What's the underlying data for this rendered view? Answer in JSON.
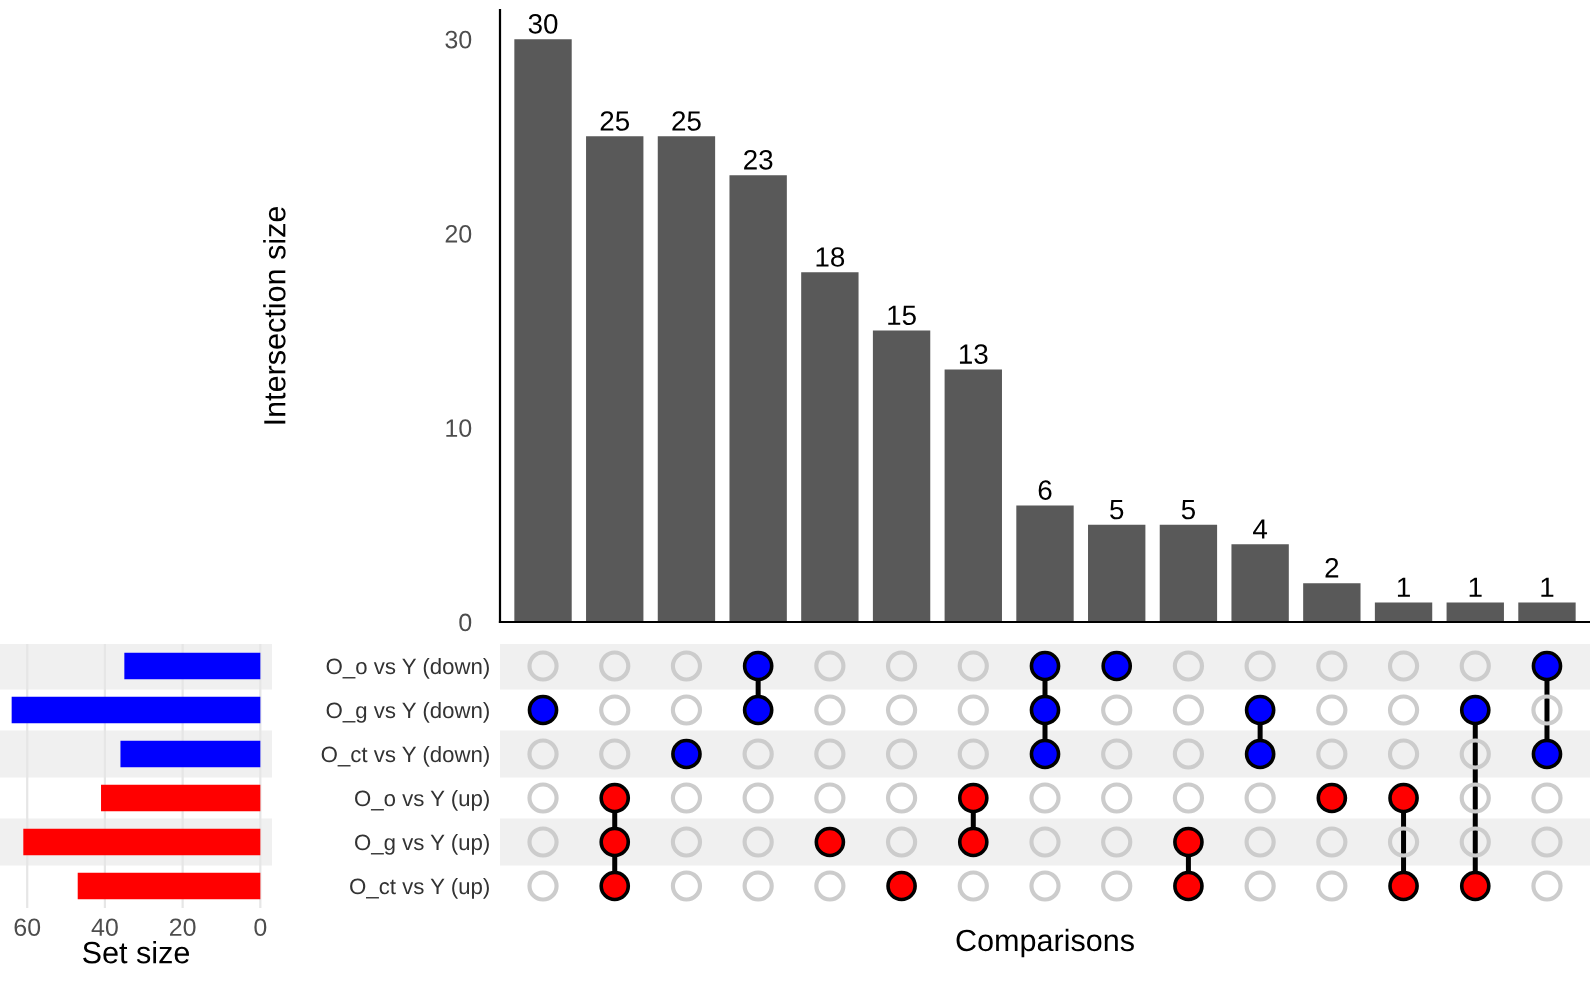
{
  "chart_data": [
    {
      "type": "bar",
      "ylabel": "Intersection size",
      "categories": [
        null,
        null,
        null,
        null,
        null,
        null,
        null,
        null,
        null,
        null,
        null,
        null,
        null,
        null,
        null
      ],
      "values": [
        30,
        25,
        25,
        23,
        18,
        15,
        13,
        6,
        5,
        5,
        4,
        2,
        1,
        1,
        1
      ],
      "color": "#595959",
      "data_labels": true,
      "ylim": [
        0,
        31.5
      ],
      "yticks": [
        0,
        10,
        20,
        30
      ],
      "grid": false
    },
    {
      "type": "bar",
      "orientation": "horizontal",
      "xlabel": "Set size",
      "categories": [
        null,
        null,
        null,
        null,
        null,
        null
      ],
      "values": [
        35,
        64,
        36,
        41,
        61,
        47
      ],
      "colors": [
        "#0000ff",
        "#0000ff",
        "#0000ff",
        "#ff0000",
        "#ff0000",
        "#ff0000"
      ],
      "xlim": [
        67,
        -3
      ],
      "xticks": [
        60,
        40,
        20,
        0
      ],
      "grid": "x"
    },
    {
      "type": "heatmap",
      "xlabel": "Comparisons",
      "categories": [
        null,
        null,
        null,
        null,
        null,
        null,
        null,
        null,
        null,
        null,
        null,
        null,
        null,
        null,
        null
      ],
      "y_categories": [
        "O_o vs Y (down)",
        "O_g vs Y (down)",
        "O_ct vs Y (down)",
        "O_o vs Y (up)",
        "O_g vs Y (up)",
        "O_ct vs Y (up)"
      ],
      "colors": [
        "#0000ff",
        "#0000ff",
        "#0000ff",
        "#ff0000",
        "#ff0000",
        "#ff0000"
      ],
      "cells": [
        [
          false,
          false,
          false,
          true,
          false,
          false,
          false,
          true,
          true,
          false,
          false,
          false,
          false,
          false,
          true
        ],
        [
          true,
          false,
          false,
          true,
          false,
          false,
          false,
          true,
          false,
          false,
          true,
          false,
          false,
          true,
          false
        ],
        [
          false,
          false,
          true,
          false,
          false,
          false,
          false,
          true,
          false,
          false,
          true,
          false,
          false,
          false,
          true
        ],
        [
          false,
          true,
          false,
          false,
          false,
          false,
          true,
          false,
          false,
          false,
          false,
          true,
          true,
          false,
          false
        ],
        [
          false,
          true,
          false,
          false,
          true,
          false,
          true,
          false,
          false,
          true,
          false,
          false,
          false,
          false,
          false
        ],
        [
          false,
          true,
          false,
          false,
          false,
          true,
          false,
          false,
          false,
          true,
          false,
          false,
          true,
          true,
          false
        ]
      ]
    }
  ]
}
